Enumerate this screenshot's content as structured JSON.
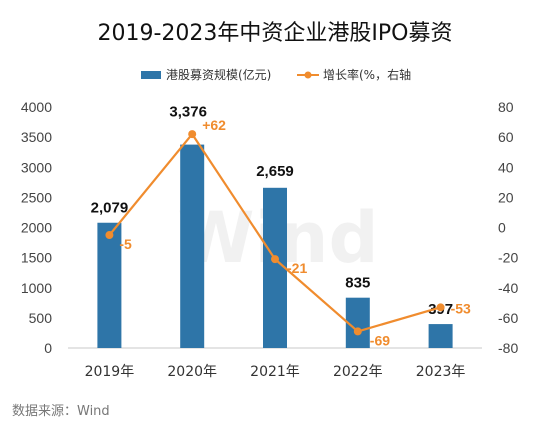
{
  "chart_data": {
    "type": "bar+line",
    "title": "2019-2023年中资企业港股IPO募资",
    "categories": [
      "2019年",
      "2020年",
      "2021年",
      "2022年",
      "2023年"
    ],
    "series": [
      {
        "name": "港股募资规模(亿元)",
        "type": "bar",
        "axis": "left",
        "color": "#2e75a8",
        "values": [
          2079,
          3376,
          2659,
          835,
          397
        ],
        "labels": [
          "2,079",
          "3,376",
          "2,659",
          "835",
          "397"
        ]
      },
      {
        "name": "增长率(%，右轴",
        "type": "line",
        "axis": "right",
        "color": "#f08c2e",
        "values": [
          -5,
          62,
          -21,
          -69,
          -53
        ],
        "labels": [
          "-5",
          "+62",
          "-21",
          "-69",
          "-53"
        ]
      }
    ],
    "left_axis": {
      "min": 0,
      "max": 4000,
      "step": 500,
      "ticks": [
        "0",
        "500",
        "1000",
        "1500",
        "2000",
        "2500",
        "3000",
        "3500",
        "4000"
      ]
    },
    "right_axis": {
      "min": -80,
      "max": 80,
      "step": 20,
      "ticks": [
        "-80",
        "-60",
        "-40",
        "-20",
        "0",
        "20",
        "40",
        "60",
        "80"
      ]
    },
    "grid": false,
    "legend_position": "top"
  },
  "source": "数据来源：Wind",
  "watermark": "Wind"
}
